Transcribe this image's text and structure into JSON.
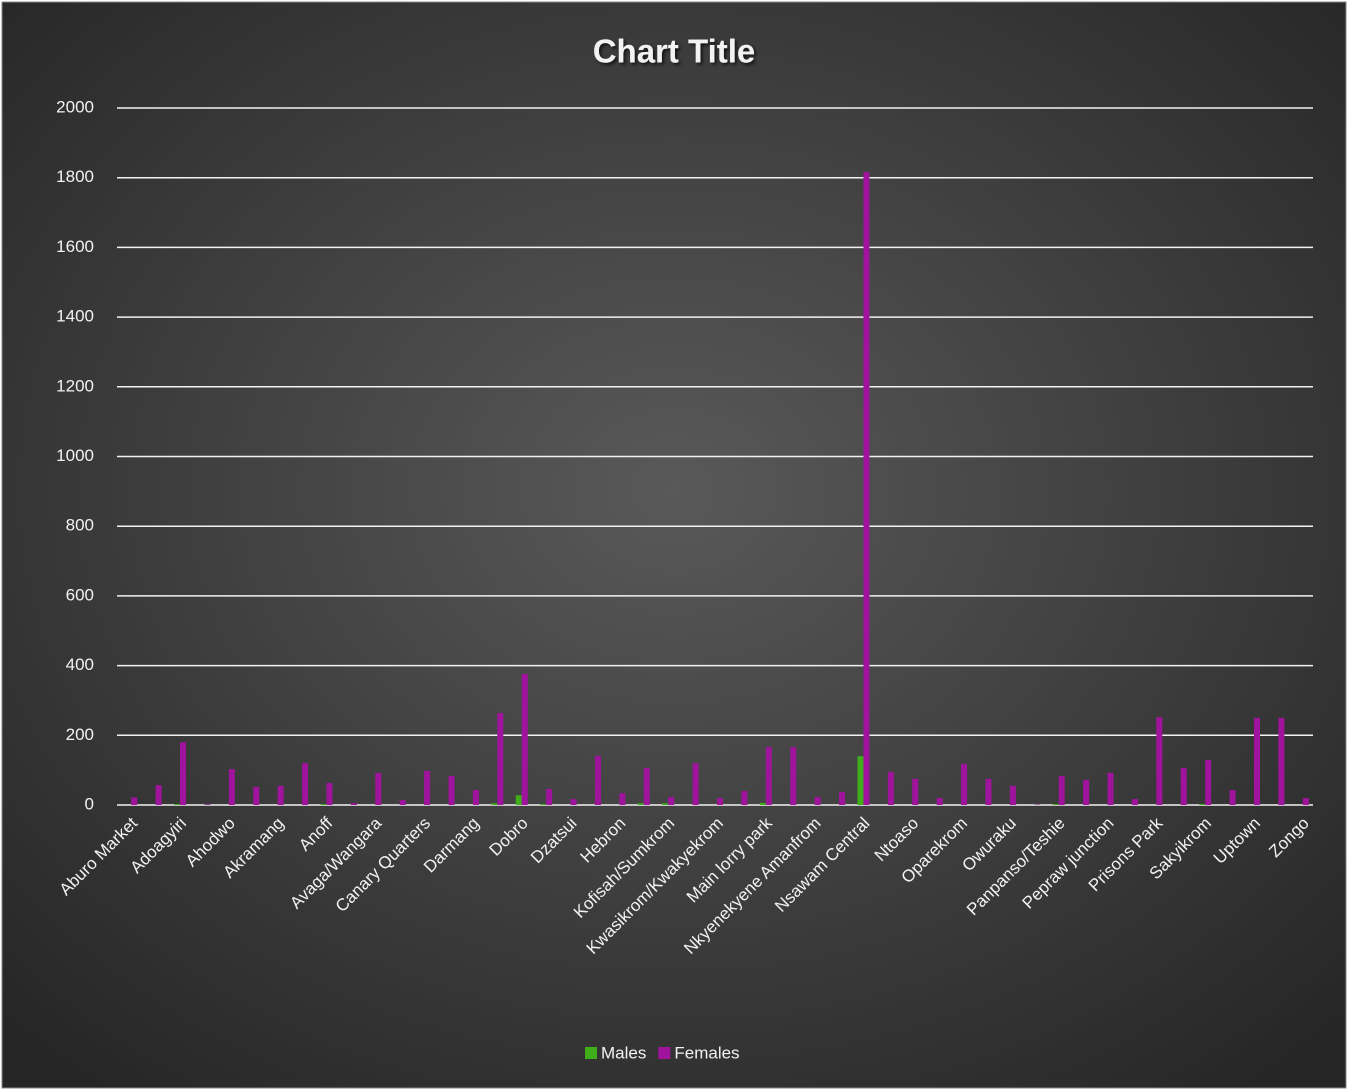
{
  "chart_data": {
    "type": "bar",
    "title": "Chart Title",
    "categories": [
      "Aburo Market",
      null,
      "Adoagyiri",
      null,
      "Ahodwo",
      null,
      "Akramang",
      null,
      "Anoff",
      null,
      "Avaga/Wangara",
      null,
      "Canary Quarters",
      null,
      "Darmang",
      null,
      "Dobro",
      null,
      "Dzatsui",
      null,
      "Hebron",
      null,
      "Kofisah/Sumkrom",
      null,
      "Kwasikrom/Kwakyekrom",
      null,
      "Main lorry park",
      null,
      "Nkyenekyene Amanfrom",
      null,
      "Nsawam Central",
      null,
      "Ntoaso",
      null,
      "Oparekrom",
      null,
      "Owuraku",
      null,
      "Panpanso/Teshie",
      null,
      "Pepraw junction",
      null,
      "Prisons Park",
      null,
      "Sakyikrom",
      null,
      "Uptown",
      null,
      "Zongo"
    ],
    "series": [
      {
        "name": "Males",
        "color": "#3fae1a",
        "values": [
          0,
          0,
          3,
          0,
          0,
          0,
          0,
          0,
          3,
          0,
          0,
          0,
          0,
          0,
          0,
          5,
          28,
          3,
          0,
          0,
          0,
          5,
          5,
          0,
          0,
          0,
          6,
          0,
          0,
          0,
          140,
          0,
          0,
          0,
          0,
          0,
          0,
          0,
          3,
          0,
          0,
          0,
          0,
          0,
          3,
          0,
          0,
          0,
          0
        ]
      },
      {
        "name": "Females",
        "color": "#a0139c",
        "values": [
          22,
          57,
          180,
          2,
          103,
          52,
          55,
          120,
          63,
          5,
          92,
          14,
          98,
          83,
          43,
          264,
          376,
          46,
          17,
          141,
          34,
          106,
          23,
          120,
          20,
          40,
          166,
          166,
          23,
          37,
          1816,
          95,
          75,
          20,
          118,
          75,
          55,
          1,
          83,
          72,
          92,
          17,
          252,
          106,
          129,
          43,
          250,
          250,
          20
        ]
      }
    ],
    "ylim": [
      0,
      2000
    ],
    "yticks": [
      0,
      200,
      400,
      600,
      800,
      1000,
      1200,
      1400,
      1600,
      1800,
      2000
    ],
    "grid": true,
    "legend": "bottom"
  }
}
